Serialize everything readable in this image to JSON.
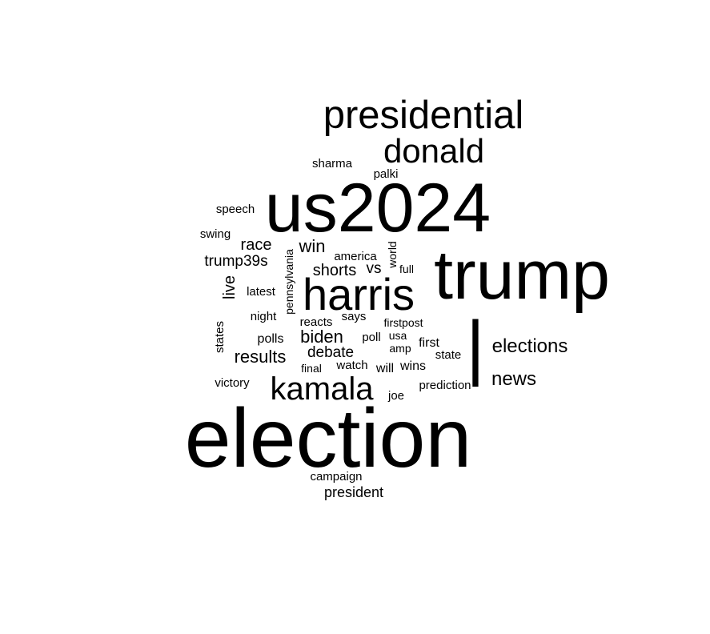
{
  "word_cloud": {
    "text_color": "#000000",
    "background_color": "#ffffff",
    "words": [
      {
        "text": "election",
        "weight": 100
      },
      {
        "text": "trump",
        "weight": 80
      },
      {
        "text": "us2024",
        "weight": 80
      },
      {
        "text": "harris",
        "weight": 55
      },
      {
        "text": "presidential",
        "weight": 48
      },
      {
        "text": "kamala",
        "weight": 40
      },
      {
        "text": "donald",
        "weight": 40
      },
      {
        "text": "|",
        "weight": 40
      },
      {
        "text": "elections",
        "weight": 22
      },
      {
        "text": "news",
        "weight": 22
      },
      {
        "text": "results",
        "weight": 20
      },
      {
        "text": "biden",
        "weight": 20
      },
      {
        "text": "win",
        "weight": 20
      },
      {
        "text": "shorts",
        "weight": 18
      },
      {
        "text": "race",
        "weight": 18
      },
      {
        "text": "trump39s",
        "weight": 18
      },
      {
        "text": "debate",
        "weight": 18
      },
      {
        "text": "live",
        "weight": 18
      },
      {
        "text": "vs",
        "weight": 18
      },
      {
        "text": "president",
        "weight": 17
      },
      {
        "text": "first",
        "weight": 15
      },
      {
        "text": "wins",
        "weight": 15
      },
      {
        "text": "will",
        "weight": 15
      },
      {
        "text": "polls",
        "weight": 15
      },
      {
        "text": "campaign",
        "weight": 13
      },
      {
        "text": "prediction",
        "weight": 13
      },
      {
        "text": "victory",
        "weight": 13
      },
      {
        "text": "states",
        "weight": 13
      },
      {
        "text": "america",
        "weight": 13
      },
      {
        "text": "joe",
        "weight": 13
      },
      {
        "text": "watch",
        "weight": 13
      },
      {
        "text": "state",
        "weight": 13
      },
      {
        "text": "poll",
        "weight": 13
      },
      {
        "text": "says",
        "weight": 13
      },
      {
        "text": "reacts",
        "weight": 13
      },
      {
        "text": "night",
        "weight": 13
      },
      {
        "text": "latest",
        "weight": 13
      },
      {
        "text": "swing",
        "weight": 13
      },
      {
        "text": "speech",
        "weight": 13
      },
      {
        "text": "sharma",
        "weight": 13
      },
      {
        "text": "palki",
        "weight": 13
      },
      {
        "text": "pennsylvania",
        "weight": 12
      },
      {
        "text": "world",
        "weight": 12
      },
      {
        "text": "full",
        "weight": 12
      },
      {
        "text": "firstpost",
        "weight": 12
      },
      {
        "text": "usa",
        "weight": 12
      },
      {
        "text": "amp",
        "weight": 12
      },
      {
        "text": "final",
        "weight": 12
      }
    ]
  }
}
